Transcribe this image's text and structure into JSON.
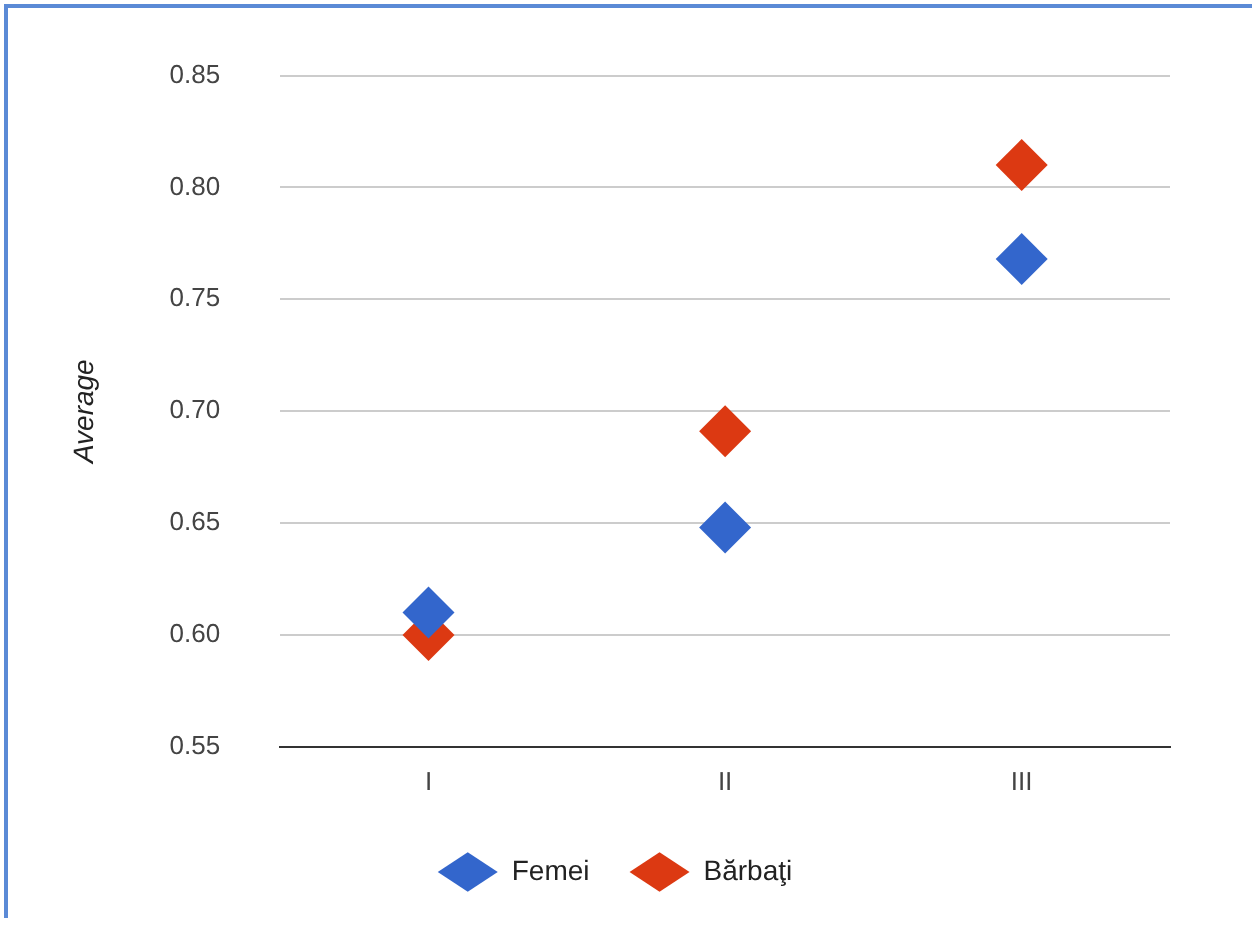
{
  "chart_data": {
    "type": "scatter",
    "ylabel": "Average",
    "categories": [
      "I",
      "II",
      "III"
    ],
    "series": [
      {
        "name": "Femei",
        "color": "#3366cc",
        "values": [
          0.61,
          0.648,
          0.768
        ]
      },
      {
        "name": "Bărbaţi",
        "color": "#dc3912",
        "values": [
          0.6,
          0.691,
          0.81
        ]
      }
    ],
    "ylim": [
      0.55,
      0.85
    ],
    "yticks": [
      0.55,
      {
        "value": 0.6,
        "label": "0.60"
      },
      0.65,
      {
        "value": 0.7,
        "label": "0.70"
      },
      0.75,
      {
        "value": 0.8,
        "label": "0.80"
      },
      0.85
    ],
    "grid": "y",
    "legend": "bottom",
    "marker": "diamond"
  }
}
